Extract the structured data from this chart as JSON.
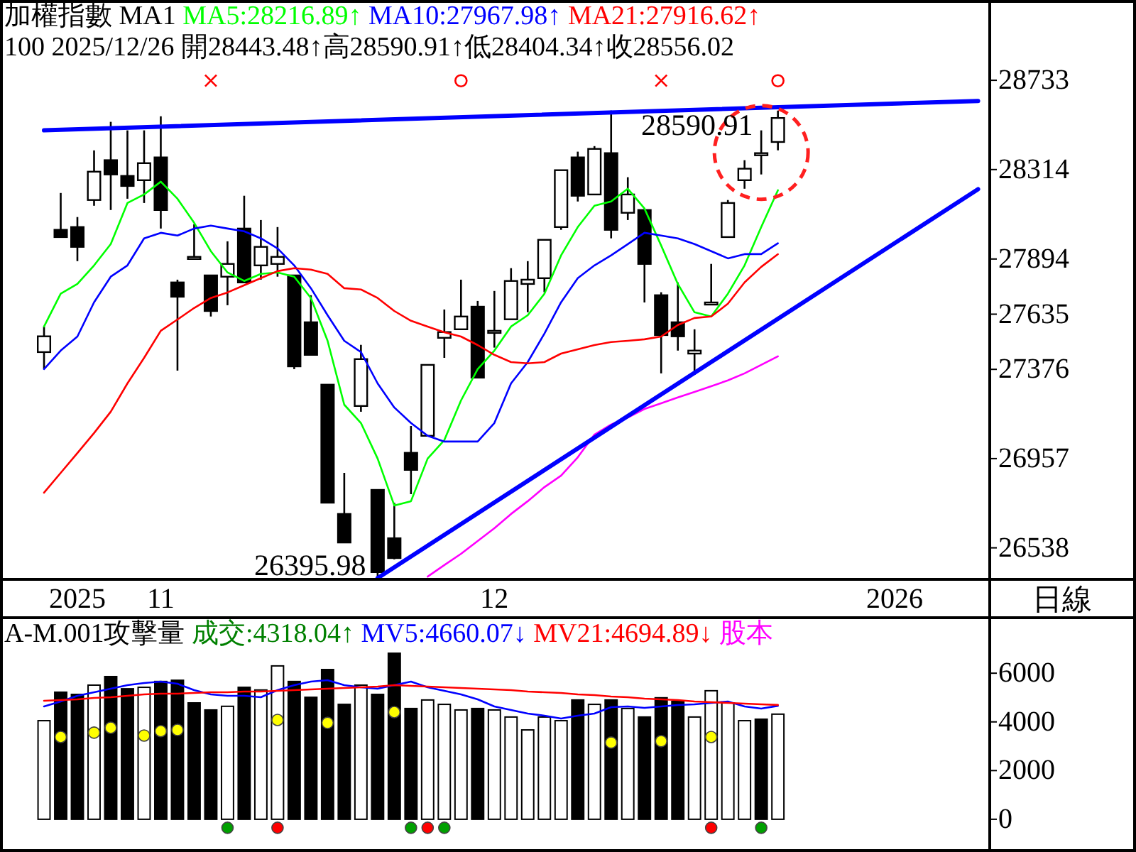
{
  "chart_data": [
    {
      "type": "candlestick",
      "title": "加權指數 MA1",
      "subtitle": "100 2025/12/26 開28443.48↑高28590.91↑低28404.34↑收28556.02",
      "legend": "top left",
      "grid": false,
      "categories": [
        null,
        null,
        "2025",
        null,
        null,
        null,
        null,
        "11",
        null,
        null,
        null,
        null,
        null,
        null,
        null,
        null,
        null,
        null,
        null,
        null,
        null,
        null,
        null,
        null,
        null,
        null,
        null,
        "12",
        null,
        null,
        null,
        null,
        null,
        null,
        null,
        null,
        null,
        null,
        null,
        null,
        null,
        null,
        null,
        null,
        null,
        null,
        null,
        null,
        null,
        null,
        null,
        "2026",
        null,
        null,
        null,
        null,
        null
      ],
      "ylim": [
        26390,
        29110
      ],
      "yticks": [
        26538,
        26957,
        27376,
        27635,
        27894,
        28314,
        28733
      ],
      "ohlc": [
        [
          27457,
          27577,
          27377,
          27531
        ],
        [
          28031,
          28204,
          27997,
          27997
        ],
        [
          28044,
          28091,
          27884,
          27951
        ],
        [
          28171,
          28404,
          28144,
          28304
        ],
        [
          28358,
          28538,
          28124,
          28291
        ],
        [
          28284,
          28498,
          28177,
          28237
        ],
        [
          28264,
          28498,
          28157,
          28344
        ],
        [
          28371,
          28564,
          28037,
          28124
        ],
        [
          27784,
          27797,
          27370,
          27717
        ],
        [
          27904,
          28057,
          27891,
          27904
        ],
        [
          27817,
          27817,
          27624,
          27650
        ],
        [
          27811,
          27977,
          27677,
          27871
        ],
        [
          28037,
          28191,
          27784,
          27784
        ],
        [
          27864,
          28077,
          27797,
          27951
        ],
        [
          27871,
          28044,
          27811,
          27904
        ],
        [
          27817,
          27817,
          27377,
          27390
        ],
        [
          27597,
          27724,
          27444,
          27444
        ],
        [
          27304,
          27304,
          26750,
          26750
        ],
        [
          26697,
          26890,
          26563,
          26563
        ],
        [
          27204,
          27491,
          27177,
          27424
        ],
        [
          26810,
          26810,
          26395.98,
          26424
        ],
        [
          26583,
          26750,
          26484,
          26490
        ],
        [
          26984,
          27110,
          26790,
          26904
        ],
        [
          27064,
          27397,
          27064,
          27397
        ],
        [
          27524,
          27657,
          27430,
          27551
        ],
        [
          27564,
          27797,
          27564,
          27624
        ],
        [
          27670,
          27697,
          27337,
          27337
        ],
        [
          27557,
          27744,
          27478,
          27557
        ],
        [
          27611,
          27851,
          27611,
          27791
        ],
        [
          27777,
          27884,
          27644,
          27797
        ],
        [
          27804,
          27984,
          27738,
          27984
        ],
        [
          28044,
          28311,
          28031,
          28311
        ],
        [
          28371,
          28398,
          28164,
          28191
        ],
        [
          28197,
          28424,
          28197,
          28411
        ],
        [
          28391,
          28590.91,
          27991,
          28031
        ],
        [
          28111,
          28278,
          28077,
          28197
        ],
        [
          28124,
          28124,
          27690,
          27871
        ],
        [
          27724,
          27738,
          27357,
          27537
        ],
        [
          27597,
          27784,
          27464,
          27531
        ],
        [
          27450,
          27564,
          27350,
          27464
        ],
        [
          27690,
          27871,
          27677,
          27690
        ],
        [
          27997,
          28171,
          27997,
          28157
        ],
        [
          28264,
          28358,
          28224,
          28318
        ],
        [
          28391,
          28498,
          28291,
          28391
        ],
        [
          28443.48,
          28590.91,
          28404.34,
          28556.02
        ],
        null,
        null,
        null,
        null,
        null,
        null,
        null,
        null,
        null,
        null,
        null,
        null
      ],
      "series": [
        {
          "name": "MA5:28216.89↑",
          "type": "line",
          "color": "#00ff00",
          "values": [
            27577,
            27731,
            27777,
            27864,
            27964,
            28157,
            28197,
            28257,
            28177,
            28064,
            27931,
            27831,
            27791,
            27824,
            27831,
            27811,
            27711,
            27510,
            27210,
            27124,
            26957,
            26737,
            26757,
            26957,
            27044,
            27230,
            27377,
            27464,
            27577,
            27630,
            27731,
            27911,
            28044,
            28144,
            28164,
            28224,
            28131,
            27957,
            27777,
            27644,
            27624,
            27731,
            27864,
            28044,
            28216.89,
            null,
            null,
            null,
            null,
            null,
            null,
            null,
            null,
            null,
            null,
            null,
            null
          ]
        },
        {
          "name": "MA10:27967.98↑",
          "type": "line",
          "color": "#0000ff",
          "values": [
            27377,
            27464,
            27530,
            27691,
            27811,
            27864,
            27991,
            28017,
            28004,
            28037,
            28051,
            28037,
            28024,
            27991,
            27944,
            27864,
            27757,
            27630,
            27510,
            27457,
            27310,
            27197,
            27124,
            27064,
            27037,
            27037,
            27037,
            27124,
            27310,
            27410,
            27544,
            27691,
            27804,
            27864,
            27911,
            27964,
            28017,
            28004,
            27991,
            27964,
            27931,
            27897,
            27917,
            27917,
            27967.98,
            null,
            null,
            null,
            null,
            null,
            null,
            null,
            null,
            null,
            null,
            null,
            null
          ]
        },
        {
          "name": "MA21:27916.62↑",
          "type": "line",
          "color": "#ff0000",
          "values": [
            26797,
            26890,
            26983,
            27077,
            27177,
            27310,
            27430,
            27557,
            27610,
            27664,
            27711,
            27737,
            27771,
            27804,
            27837,
            27851,
            27844,
            27824,
            27757,
            27751,
            27711,
            27650,
            27604,
            27577,
            27550,
            27530,
            27490,
            27444,
            27410,
            27404,
            27410,
            27450,
            27470,
            27490,
            27504,
            27510,
            27517,
            27530,
            27584,
            27617,
            27624,
            27684,
            27784,
            27857,
            27916.62,
            null,
            null,
            null,
            null,
            null,
            null,
            null,
            null,
            null,
            null,
            null,
            null
          ]
        },
        {
          "type": "line",
          "color": "#ff00ff",
          "values": [
            null,
            null,
            null,
            null,
            null,
            null,
            null,
            null,
            null,
            null,
            null,
            null,
            null,
            null,
            null,
            null,
            null,
            null,
            null,
            null,
            null,
            null,
            null,
            26403,
            26457,
            26510,
            26570,
            26630,
            26697,
            26757,
            26823,
            26877,
            26963,
            27070,
            27117,
            27150,
            27190,
            27217,
            27244,
            27270,
            27297,
            27324,
            27357,
            27397,
            27437,
            null,
            null,
            null,
            null,
            null,
            null,
            null,
            null,
            null,
            null,
            null,
            null
          ]
        },
        {
          "type": "line",
          "color": "#0000ff",
          "values": [
            28498,
            null,
            null,
            null,
            null,
            null,
            null,
            null,
            null,
            null,
            null,
            null,
            null,
            null,
            null,
            null,
            null,
            null,
            null,
            null,
            null,
            null,
            null,
            null,
            null,
            null,
            null,
            null,
            null,
            null,
            null,
            null,
            null,
            null,
            null,
            null,
            null,
            null,
            null,
            null,
            null,
            null,
            null,
            null,
            null,
            null,
            null,
            null,
            null,
            null,
            null,
            null,
            null,
            null,
            null,
            null,
            28636
          ]
        },
        {
          "type": "line",
          "color": "#0000ff",
          "values": [
            null,
            null,
            null,
            null,
            null,
            null,
            null,
            null,
            null,
            null,
            null,
            null,
            null,
            null,
            null,
            null,
            null,
            null,
            null,
            null,
            26396,
            null,
            null,
            null,
            null,
            null,
            null,
            null,
            null,
            null,
            null,
            null,
            null,
            null,
            null,
            null,
            null,
            null,
            null,
            null,
            null,
            null,
            null,
            null,
            null,
            null,
            null,
            null,
            null,
            null,
            null,
            null,
            null,
            null,
            null,
            null,
            28222
          ]
        },
        {
          "type": "scatter",
          "marker": "cross",
          "color": "#ff0000",
          "values": [
            null,
            null,
            null,
            null,
            null,
            null,
            null,
            null,
            null,
            null,
            28731,
            null,
            null,
            null,
            null,
            null,
            null,
            null,
            null,
            null,
            null,
            null,
            null,
            null,
            null,
            null,
            null,
            null,
            null,
            null,
            null,
            null,
            null,
            null,
            null,
            null,
            null,
            28731,
            null,
            null,
            null,
            null,
            null,
            null,
            null,
            null,
            null,
            null,
            null,
            null,
            null,
            null,
            null,
            null,
            null,
            null,
            null
          ]
        },
        {
          "type": "scatter",
          "marker": "circle",
          "color": "#ff0000",
          "values": [
            null,
            null,
            null,
            null,
            null,
            null,
            null,
            null,
            null,
            null,
            null,
            null,
            null,
            null,
            null,
            null,
            null,
            null,
            null,
            null,
            null,
            null,
            null,
            null,
            null,
            28731,
            null,
            null,
            null,
            null,
            null,
            null,
            null,
            null,
            null,
            null,
            null,
            null,
            null,
            null,
            null,
            null,
            null,
            null,
            28731,
            null,
            null,
            null,
            null,
            null,
            null,
            null,
            null,
            null,
            null,
            null,
            null
          ]
        }
      ],
      "annotations": [
        {
          "text": "28590.91",
          "y": 28590.91
        },
        "26395.98",
        "日線"
      ]
    },
    {
      "type": "bar",
      "title": "A-M.001攻擊量",
      "legend": "top left",
      "grid": false,
      "tick_labels": "y",
      "categories": [
        null,
        null,
        null,
        null,
        null,
        null,
        null,
        null,
        null,
        null,
        null,
        null,
        null,
        null,
        null,
        null,
        null,
        null,
        null,
        null,
        null,
        null,
        null,
        null,
        null,
        null,
        null,
        null,
        null,
        null,
        null,
        null,
        null,
        null,
        null,
        null,
        null,
        null,
        null,
        null,
        null,
        null,
        null,
        null,
        null,
        null,
        null,
        null,
        null,
        null,
        null,
        null,
        null,
        null,
        null,
        null,
        null
      ],
      "ylim": [
        -1170,
        8280
      ],
      "yticks": [
        0,
        2000,
        4000,
        6000
      ],
      "series": [
        {
          "type": "bar",
          "values": [
            4050,
            5220,
            5130,
            5510,
            5860,
            5360,
            5420,
            5660,
            5710,
            4780,
            4490,
            4640,
            5420,
            5310,
            6300,
            5660,
            5010,
            6150,
            4720,
            5510,
            5130,
            6820,
            4550,
            4900,
            4720,
            4490,
            4550,
            4490,
            4200,
            3670,
            4200,
            4050,
            4900,
            4720,
            4900,
            4550,
            4200,
            4990,
            4840,
            4200,
            5280,
            4780,
            4050,
            4110,
            4318.04,
            null,
            null,
            null,
            null,
            null,
            null,
            null,
            null,
            null,
            null,
            null,
            null
          ],
          "colors": [
            "#ffffff",
            "#000000",
            "#000000",
            "#ffffff",
            "#000000",
            "#000000",
            "#ffffff",
            "#000000",
            "#000000",
            "#000000",
            "#000000",
            "#ffffff",
            "#000000",
            "#ffffff",
            "#ffffff",
            "#000000",
            "#000000",
            "#000000",
            "#000000",
            "#ffffff",
            "#000000",
            "#000000",
            "#000000",
            "#ffffff",
            "#ffffff",
            "#ffffff",
            "#000000",
            "#ffffff",
            "#ffffff",
            "#ffffff",
            "#ffffff",
            "#ffffff",
            "#000000",
            "#ffffff",
            "#000000",
            "#ffffff",
            "#000000",
            "#000000",
            "#000000",
            "#ffffff",
            "#ffffff",
            "#ffffff",
            "#ffffff",
            "#000000",
            "#ffffff",
            null,
            null,
            null,
            null,
            null,
            null,
            null,
            null,
            null,
            null,
            null,
            null
          ]
        },
        {
          "name": "MV5:4660.07↓",
          "type": "line",
          "color": "#0000ff",
          "values": [
            4635,
            4839,
            5072,
            5218,
            5364,
            5509,
            5597,
            5655,
            5568,
            5305,
            5130,
            5072,
            5072,
            5014,
            5305,
            5509,
            5655,
            5713,
            5509,
            5422,
            5364,
            5509,
            5655,
            5422,
            5276,
            5130,
            4926,
            4635,
            4489,
            4343,
            4256,
            4139,
            4256,
            4343,
            4606,
            4635,
            4577,
            4635,
            4693,
            4722,
            4781,
            4839,
            4635,
            4547,
            4660.07,
            null,
            null,
            null,
            null,
            null,
            null,
            null,
            null,
            null,
            null,
            null,
            null
          ]
        },
        {
          "name": "MV21:4694.89↓",
          "type": "line",
          "color": "#ff0000",
          "values": [
            4868,
            4897,
            4926,
            4985,
            5014,
            5072,
            5130,
            5160,
            5160,
            5189,
            5218,
            5218,
            5247,
            5247,
            5276,
            5305,
            5334,
            5364,
            5393,
            5422,
            5451,
            5509,
            5480,
            5451,
            5422,
            5393,
            5364,
            5334,
            5305,
            5247,
            5218,
            5189,
            5130,
            5101,
            5043,
            5014,
            4956,
            4926,
            4897,
            4839,
            4810,
            4781,
            4750,
            4720,
            4694.89,
            null,
            null,
            null,
            null,
            null,
            null,
            null,
            null,
            null,
            null,
            null,
            null
          ]
        },
        {
          "type": "scatter",
          "marker": "circle",
          "color": "#ffff00",
          "values": [
            null,
            3380,
            null,
            3560,
            3760,
            null,
            3440,
            3620,
            3670,
            null,
            null,
            null,
            null,
            null,
            4080,
            null,
            null,
            3960,
            null,
            null,
            null,
            4400,
            null,
            null,
            null,
            null,
            null,
            null,
            null,
            null,
            null,
            null,
            null,
            null,
            3150,
            null,
            null,
            3210,
            null,
            null,
            3380,
            null,
            null,
            null,
            null,
            null,
            null,
            null,
            null,
            null,
            null,
            null,
            null,
            null,
            null,
            null,
            null
          ]
        },
        {
          "type": "scatter",
          "marker": "circle",
          "color": "#00a000",
          "values": [
            null,
            null,
            null,
            null,
            null,
            null,
            null,
            null,
            null,
            null,
            null,
            -350,
            null,
            null,
            null,
            null,
            null,
            null,
            null,
            null,
            null,
            null,
            -350,
            null,
            -350,
            null,
            null,
            null,
            null,
            null,
            null,
            null,
            null,
            null,
            null,
            null,
            null,
            null,
            null,
            null,
            null,
            null,
            null,
            -350,
            null,
            null,
            null,
            null,
            null,
            null,
            null,
            null,
            null,
            null,
            null,
            null,
            null
          ]
        },
        {
          "type": "scatter",
          "marker": "circle",
          "color": "#ff0000",
          "values": [
            null,
            null,
            null,
            null,
            null,
            null,
            null,
            null,
            null,
            null,
            null,
            null,
            null,
            null,
            -350,
            null,
            null,
            null,
            null,
            null,
            null,
            null,
            null,
            -350,
            null,
            null,
            null,
            null,
            null,
            null,
            null,
            null,
            null,
            null,
            null,
            null,
            null,
            null,
            null,
            null,
            -350,
            null,
            null,
            null,
            null,
            null,
            null,
            null,
            null,
            null,
            null,
            null,
            null,
            null,
            null,
            null,
            null
          ]
        }
      ],
      "annotations": [
        "成交:4318.04↑",
        "股本"
      ]
    }
  ]
}
